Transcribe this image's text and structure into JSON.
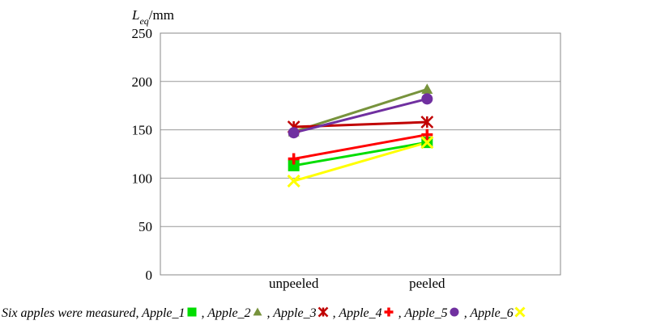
{
  "chart_data": {
    "type": "line",
    "ylabel": "L",
    "ylabel_sub": "eq",
    "ylabel_unit": "/mm",
    "categories": [
      "unpeeled",
      "peeled"
    ],
    "ylim": [
      0,
      250
    ],
    "yticks": [
      0,
      50,
      100,
      150,
      200,
      250
    ],
    "grid": true,
    "legend_intro": "Six apples were measured,",
    "legend_separator": ",",
    "series": [
      {
        "name": "Apple_1",
        "color": "#00dd00",
        "marker": "square",
        "values": [
          113,
          137
        ]
      },
      {
        "name": "Apple_2",
        "color": "#77933c",
        "marker": "triangle",
        "values": [
          148,
          192
        ]
      },
      {
        "name": "Apple_3",
        "color": "#c00000",
        "marker": "star",
        "values": [
          153,
          158
        ]
      },
      {
        "name": "Apple_4",
        "color": "#ff0000",
        "marker": "plus",
        "values": [
          120,
          145
        ]
      },
      {
        "name": "Apple_5",
        "color": "#7030a0",
        "marker": "circle",
        "values": [
          147,
          182
        ]
      },
      {
        "name": "Apple_6",
        "color": "#ffff00",
        "marker": "cross",
        "values": [
          97,
          137
        ]
      }
    ]
  }
}
